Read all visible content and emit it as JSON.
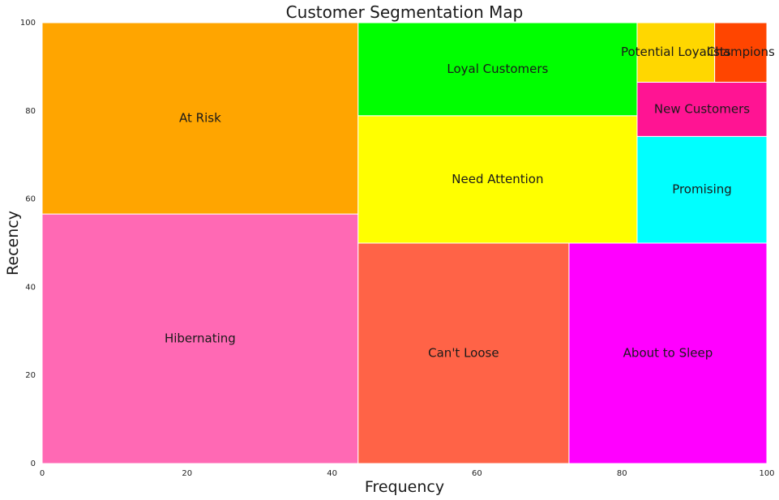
{
  "chart_data": {
    "type": "treemap",
    "title": "Customer Segmentation Map",
    "xlabel": "Frequency",
    "ylabel": "Recency",
    "xlim": [
      0,
      100
    ],
    "ylim": [
      0,
      100
    ],
    "x_ticks": [
      "0",
      "20",
      "40",
      "60",
      "80",
      "100"
    ],
    "y_ticks": [
      "0",
      "20",
      "40",
      "60",
      "80",
      "100"
    ],
    "grid": false,
    "segments": [
      {
        "label": "Hibernating",
        "x0": 0,
        "x1": 43.6,
        "y0": 0,
        "y1": 56.6,
        "color": "#ff69b4"
      },
      {
        "label": "At Risk",
        "x0": 0,
        "x1": 43.6,
        "y0": 56.6,
        "y1": 100,
        "color": "#ffa500"
      },
      {
        "label": "Can't Loose",
        "x0": 43.6,
        "x1": 72.7,
        "y0": 0,
        "y1": 50,
        "color": "#ff6347"
      },
      {
        "label": "About to Sleep",
        "x0": 72.7,
        "x1": 100,
        "y0": 0,
        "y1": 50,
        "color": "#ff00ff"
      },
      {
        "label": "Need Attention",
        "x0": 43.6,
        "x1": 82.1,
        "y0": 50,
        "y1": 78.9,
        "color": "#ffff00"
      },
      {
        "label": "Loyal Customers",
        "x0": 43.6,
        "x1": 82.1,
        "y0": 78.9,
        "y1": 100,
        "color": "#00ff00"
      },
      {
        "label": "Promising",
        "x0": 82.1,
        "x1": 100,
        "y0": 50,
        "y1": 74.2,
        "color": "#00ffff"
      },
      {
        "label": "New Customers",
        "x0": 82.1,
        "x1": 100,
        "y0": 74.2,
        "y1": 86.5,
        "color": "#ff1493"
      },
      {
        "label": "Potential Loyalists",
        "x0": 82.1,
        "x1": 92.8,
        "y0": 86.5,
        "y1": 100,
        "color": "#ffd700"
      },
      {
        "label": "Champions",
        "x0": 92.8,
        "x1": 100,
        "y0": 86.5,
        "y1": 100,
        "color": "#ff4500"
      }
    ]
  }
}
